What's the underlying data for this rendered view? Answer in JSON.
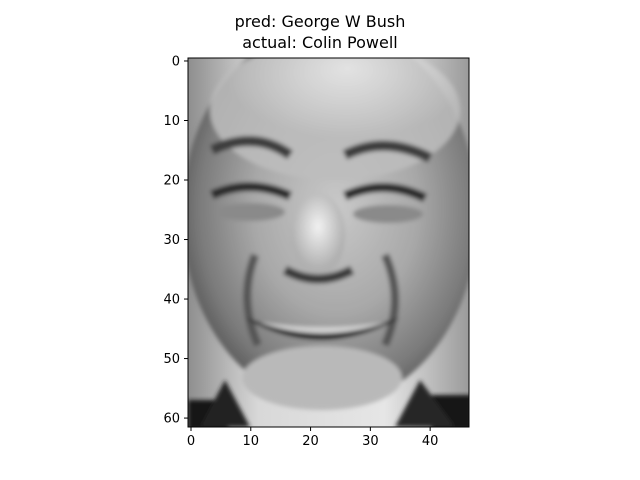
{
  "figure": {
    "title_pred": "pred: George W Bush",
    "title_actual": "actual: Colin Powell"
  },
  "image": {
    "colormap": "gray",
    "description_shape": [
      62,
      47
    ],
    "x_ticks": [
      0,
      10,
      20,
      30,
      40
    ],
    "y_ticks": [
      0,
      10,
      20,
      30,
      40,
      50,
      60
    ],
    "x_ticks_label": [
      "0",
      "10",
      "20",
      "30",
      "40"
    ],
    "y_ticks_label": [
      "0",
      "10",
      "20",
      "30",
      "40",
      "50",
      "60"
    ]
  }
}
